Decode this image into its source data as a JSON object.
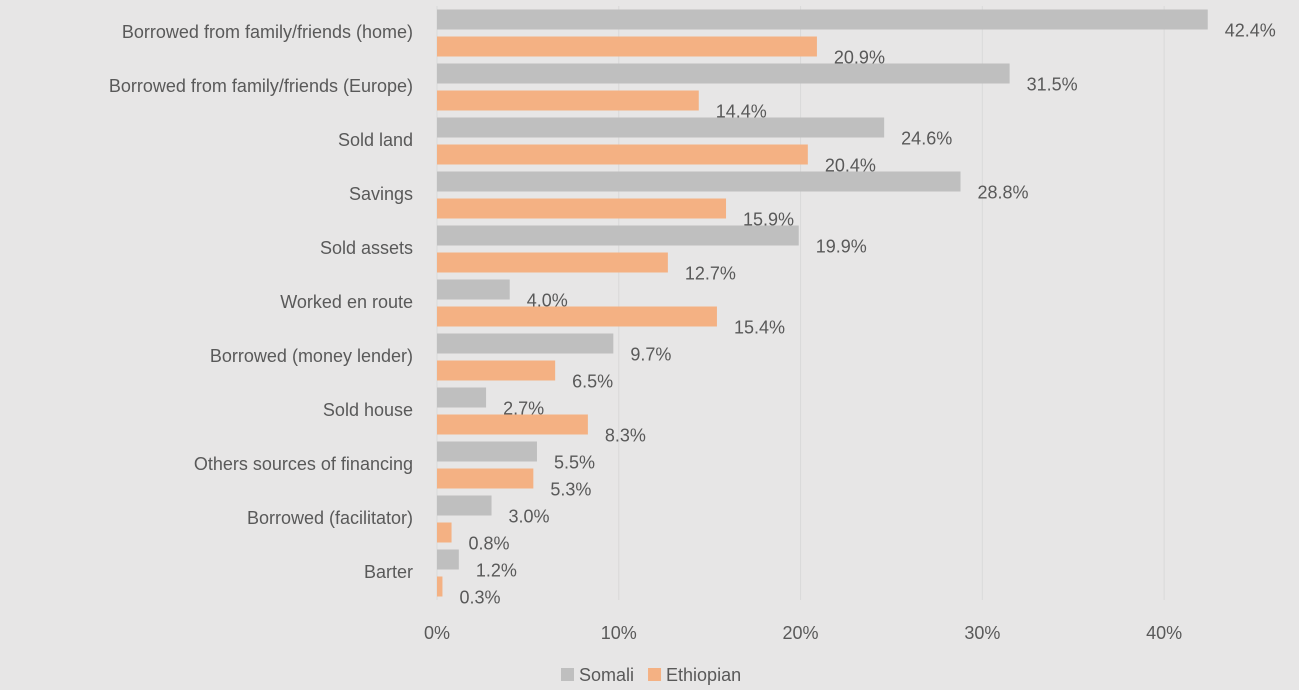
{
  "chart_data": {
    "type": "hbar",
    "categories": [
      "Borrowed from family/friends (home)",
      "Borrowed from family/friends (Europe)",
      "Sold land",
      "Savings",
      "Sold assets",
      "Worked en route",
      "Borrowed (money lender)",
      "Sold house",
      "Others sources of financing",
      "Borrowed (facilitator)",
      "Barter"
    ],
    "series": [
      {
        "name": "Somali",
        "color": "#bfbfbf",
        "values": [
          42.4,
          31.5,
          24.6,
          28.8,
          19.9,
          4.0,
          9.7,
          2.7,
          5.5,
          3.0,
          1.2
        ],
        "value_labels": [
          "42.4%",
          "31.5%",
          "24.6%",
          "28.8%",
          "19.9%",
          "4.0%",
          "9.7%",
          "2.7%",
          "5.5%",
          "3.0%",
          "1.2%"
        ]
      },
      {
        "name": "Ethiopian",
        "color": "#f4b183",
        "values": [
          20.9,
          14.4,
          20.4,
          15.9,
          12.7,
          15.4,
          6.5,
          8.3,
          5.3,
          0.8,
          0.3
        ],
        "value_labels": [
          "20.9%",
          "14.4%",
          "20.4%",
          "15.9%",
          "12.7%",
          "15.4%",
          "6.5%",
          "8.3%",
          "5.3%",
          "0.8%",
          "0.3%"
        ]
      }
    ],
    "xlim": [
      0,
      45
    ],
    "xticks": [
      {
        "value": 0,
        "label": "0%"
      },
      {
        "value": 10,
        "label": "10%"
      },
      {
        "value": 20,
        "label": "20%"
      },
      {
        "value": 30,
        "label": "30%"
      },
      {
        "value": 40,
        "label": "40%"
      }
    ],
    "grid": true,
    "legend": "bottom"
  }
}
